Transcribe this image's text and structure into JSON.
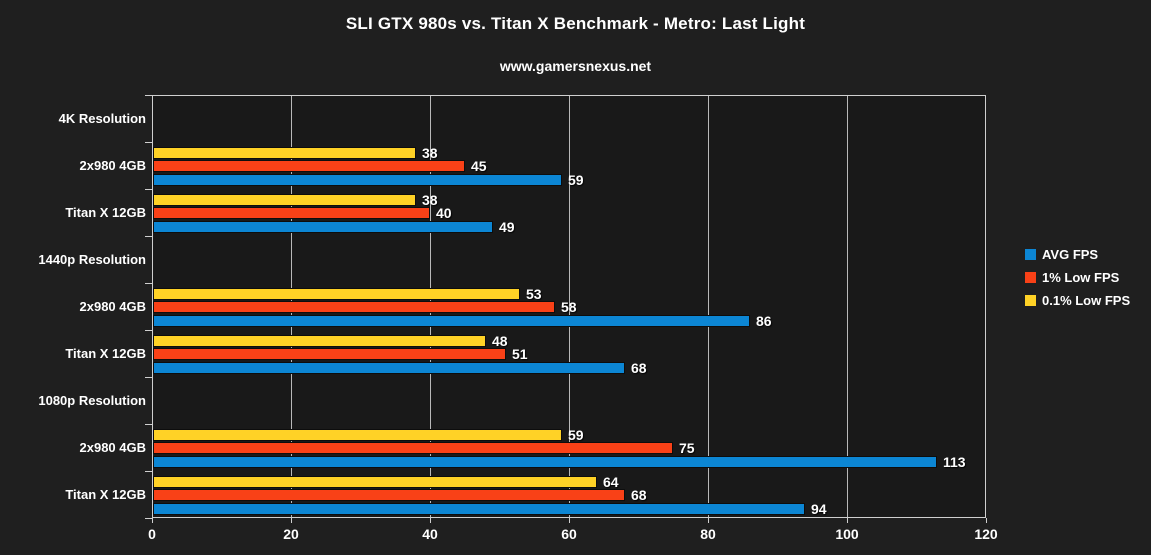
{
  "title": "SLI GTX 980s vs. Titan X Benchmark - Metro: Last Light",
  "subtitle": "www.gamersnexus.net",
  "colors": {
    "page_background": "#1f1f1f",
    "plot_background": "#191919",
    "axis_line": "#cfcfcf",
    "gridline": "#b9b9b9",
    "text": "#ffffff",
    "bar_outline": "#0d0d0d",
    "avg_fps": "#0c86d4",
    "low_1pct_fps": "#f94117",
    "low_01pct_fps": "#ffd226"
  },
  "legend": {
    "position": "right",
    "items": [
      {
        "label": "AVG FPS",
        "color": "#0c86d4"
      },
      {
        "label": "1% Low FPS",
        "color": "#f94117"
      },
      {
        "label": "0.1% Low FPS",
        "color": "#ffd226"
      }
    ]
  },
  "chart_data": {
    "type": "bar",
    "orientation": "horizontal",
    "title": "SLI GTX 980s vs. Titan X Benchmark - Metro: Last Light",
    "subtitle": "www.gamersnexus.net",
    "xlabel": "",
    "ylabel": "",
    "xlim": [
      0,
      120
    ],
    "x_ticks": [
      0,
      20,
      40,
      60,
      80,
      100,
      120
    ],
    "grid": true,
    "legend_position": "right",
    "bar_stack_order_top_to_bottom": [
      "0.1% Low FPS",
      "1% Low FPS",
      "AVG FPS"
    ],
    "groups": [
      {
        "label": "4K Resolution",
        "is_section_header": true
      },
      {
        "label": "2x980 4GB",
        "is_section_header": false
      },
      {
        "label": "Titan X 12GB",
        "is_section_header": false
      },
      {
        "label": "1440p Resolution",
        "is_section_header": true
      },
      {
        "label": "2x980 4GB",
        "is_section_header": false
      },
      {
        "label": "Titan X 12GB",
        "is_section_header": false
      },
      {
        "label": "1080p Resolution",
        "is_section_header": true
      },
      {
        "label": "2x980 4GB",
        "is_section_header": false
      },
      {
        "label": "Titan X 12GB",
        "is_section_header": false
      }
    ],
    "series": [
      {
        "name": "AVG FPS",
        "color": "#0c86d4",
        "values": [
          null,
          59,
          49,
          null,
          86,
          68,
          null,
          113,
          94
        ]
      },
      {
        "name": "1% Low FPS",
        "color": "#f94117",
        "values": [
          null,
          45,
          40,
          null,
          58,
          51,
          null,
          75,
          68
        ]
      },
      {
        "name": "0.1% Low FPS",
        "color": "#ffd226",
        "values": [
          null,
          38,
          38,
          null,
          53,
          48,
          null,
          59,
          64
        ]
      }
    ]
  }
}
